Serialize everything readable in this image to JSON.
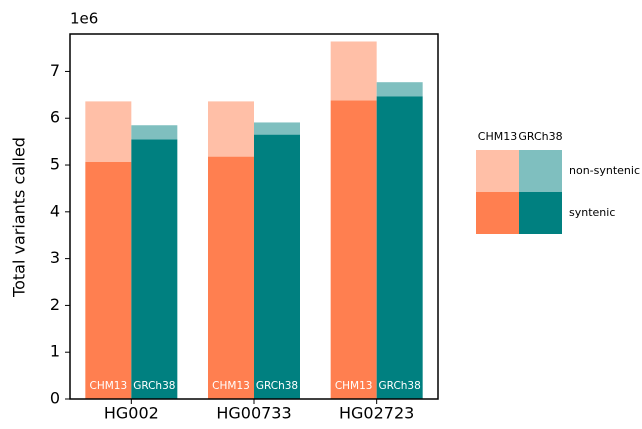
{
  "chart_data": {
    "type": "bar",
    "ylabel": "Total variants called",
    "offset_label": "1e6",
    "categories": [
      "HG002",
      "HG00733",
      "HG02723"
    ],
    "series": [
      {
        "stack": "CHM13",
        "name": "syntenic",
        "color": "#ff7f50",
        "values": [
          5.07,
          5.18,
          6.38
        ]
      },
      {
        "stack": "CHM13",
        "name": "non-syntenic",
        "color": "#ffbfa7",
        "values": [
          1.29,
          1.18,
          1.26
        ]
      },
      {
        "stack": "GRCh38",
        "name": "syntenic",
        "color": "#008080",
        "values": [
          5.55,
          5.65,
          6.47
        ]
      },
      {
        "stack": "GRCh38",
        "name": "non-syntenic",
        "color": "#7fbfbf",
        "values": [
          0.3,
          0.26,
          0.3
        ]
      }
    ],
    "ylim": [
      0,
      7.8
    ],
    "yticks": [
      0,
      1,
      2,
      3,
      4,
      5,
      6,
      7
    ]
  }
}
